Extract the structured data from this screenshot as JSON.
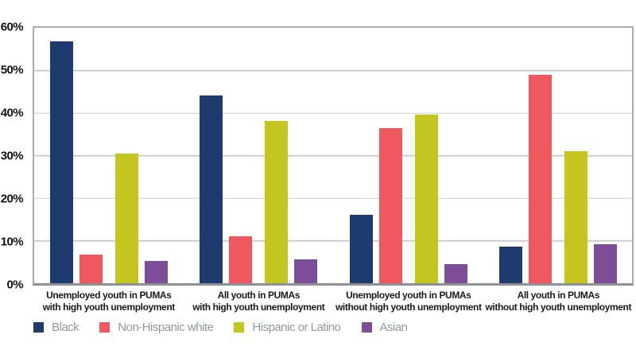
{
  "chart_data": {
    "type": "bar",
    "title": "",
    "xlabel": "",
    "ylabel": "",
    "ylim": [
      0,
      60
    ],
    "grid": true,
    "legend_position": "bottom",
    "categories": [
      "Unemployed youth in PUMAs\nwith high youth unemployment",
      "All youth in PUMAs\nwith high youth unemployment",
      "Unemployed youth in PUMAs\nwithout high youth unemployment",
      "All youth in PUMAs\nwithout high youth unemployment"
    ],
    "series": [
      {
        "name": "Black",
        "color": "#1d3c6d",
        "values": [
          56.8,
          44.2,
          16.1,
          8.6
        ]
      },
      {
        "name": "Non-Hispanic white",
        "color": "#f0585f",
        "values": [
          6.7,
          11.0,
          36.4,
          48.9
        ]
      },
      {
        "name": "Hispanic or Latino",
        "color": "#c4c521",
        "values": [
          30.4,
          38.1,
          39.7,
          31.1
        ]
      },
      {
        "name": "Asian",
        "color": "#7d4d98",
        "values": [
          5.3,
          5.6,
          4.5,
          9.1
        ]
      }
    ],
    "y_ticks": [
      {
        "value": 0,
        "label": "0%"
      },
      {
        "value": 10,
        "label": "10%"
      },
      {
        "value": 20,
        "label": "20%"
      },
      {
        "value": 30,
        "label": "30%"
      },
      {
        "value": 40,
        "label": "40%"
      },
      {
        "value": 50,
        "label": "50%"
      },
      {
        "value": 60,
        "label": "60%"
      }
    ],
    "style": {
      "gridline_color": "#cccdce",
      "plot_border_color": "#a9abae",
      "axis_line_color": "#8e9093",
      "tick_label_color": "#111111",
      "category_label_color": "#1a1a1a",
      "legend_text_color": "#8e99a4",
      "background": "#ffffff"
    }
  }
}
